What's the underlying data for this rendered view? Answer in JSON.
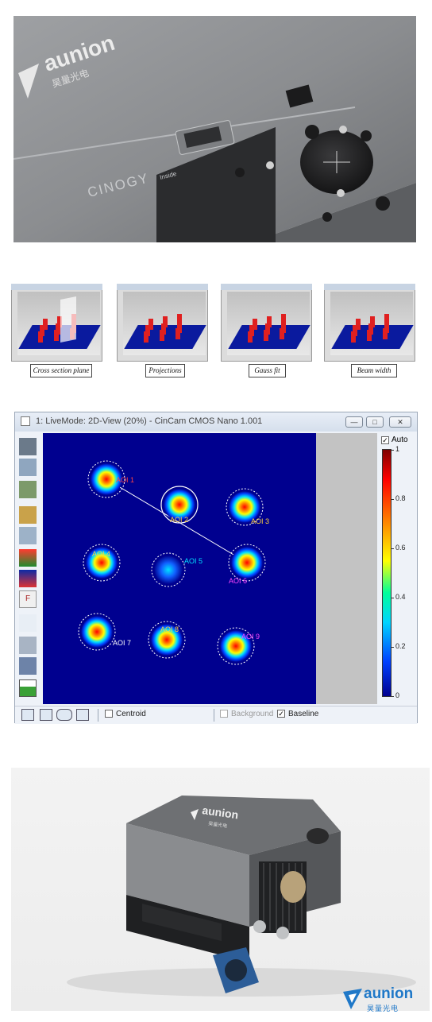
{
  "photo1": {
    "brand_logo": "aunion",
    "brand_cn": "昊量光电",
    "device_label": "CINOGY",
    "device_sub": "Inside"
  },
  "thumbnails": [
    {
      "caption": "Cross section plane"
    },
    {
      "caption": "Projections"
    },
    {
      "caption": "Gauss fit"
    },
    {
      "caption": "Beam width"
    }
  ],
  "window": {
    "title": "1: LiveMode: 2D-View (20%) - CinCam CMOS Nano 1.001",
    "auto_label": "Auto",
    "auto_checked": true,
    "scale_ticks": [
      "1",
      "0.8",
      "0.6",
      "0.4",
      "0.2",
      "0"
    ],
    "aoi_labels": [
      "AOI 1",
      "AOI 2",
      "AOI 3",
      "AOI 4",
      "AOI 5",
      "AOI 6",
      "AOI 7",
      "AOI 8",
      "AOI 9"
    ],
    "bottom": {
      "centroid_label": "Centroid",
      "background_label": "Background",
      "baseline_label": "Baseline"
    }
  },
  "photo2": {
    "device_brand": "aunion",
    "device_brand_cn": "昊量光电"
  },
  "footer_logo": {
    "text": "aunion",
    "cn": "昊量光电",
    "color": "#1f78c8"
  }
}
